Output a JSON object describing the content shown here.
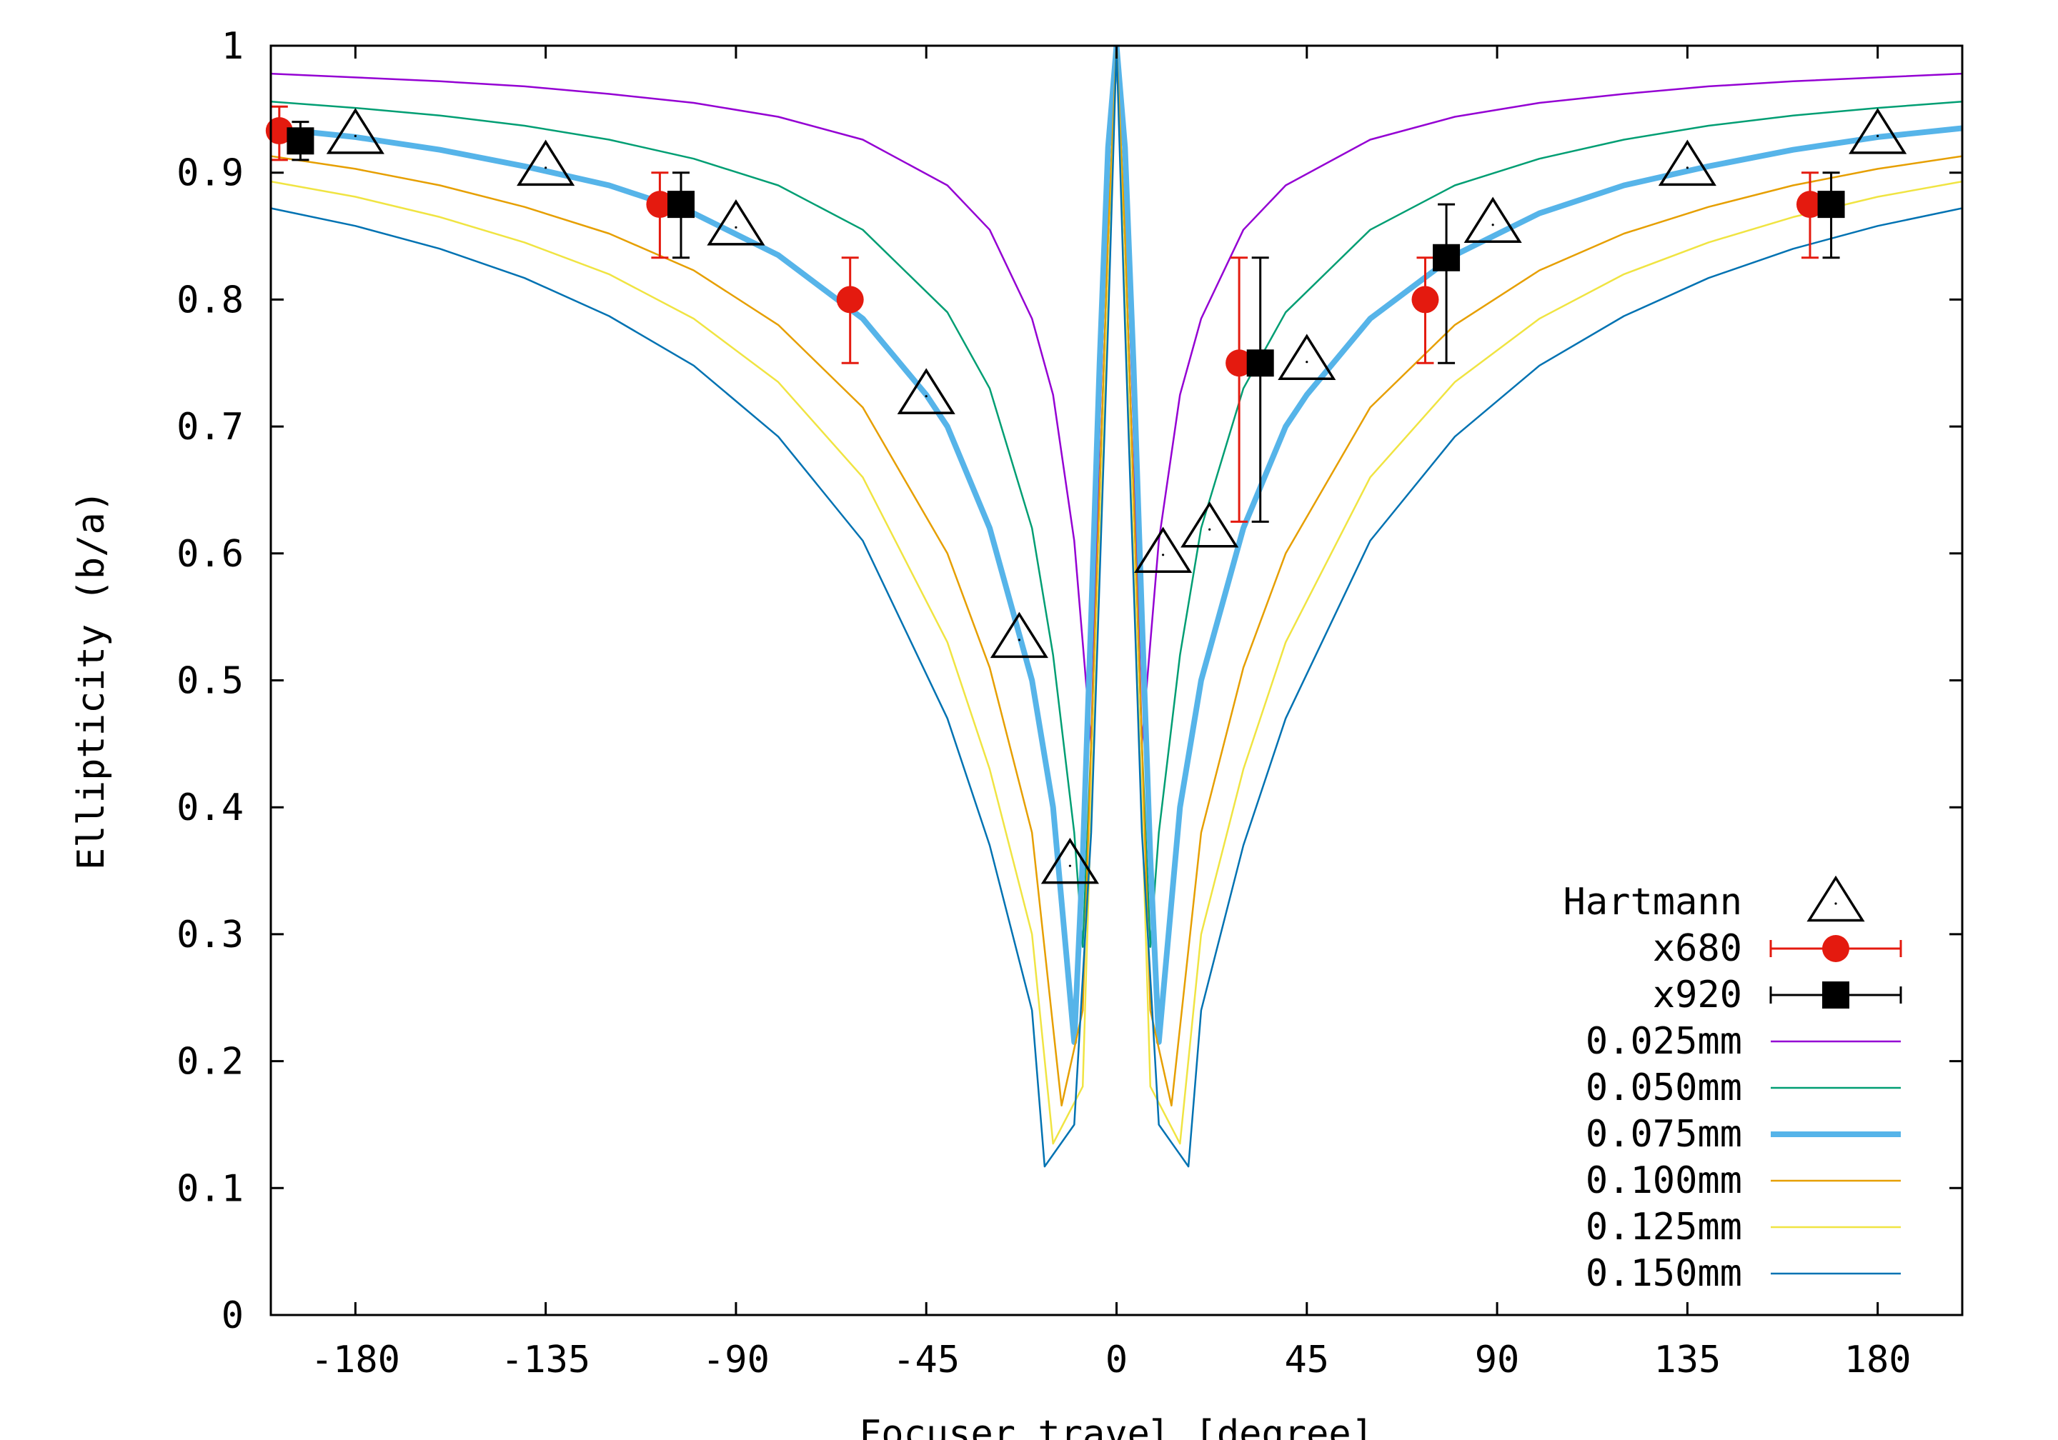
{
  "chart_data": {
    "type": "line",
    "title": "",
    "xlabel": "Focuser travel [degree]",
    "ylabel": "Ellipticity (b/a)",
    "xlim": [
      -200,
      200
    ],
    "ylim": [
      0,
      1
    ],
    "grid": false,
    "x_ticks": [
      -180,
      -135,
      -90,
      -45,
      0,
      45,
      90,
      135,
      180
    ],
    "x_tick_labels": [
      "-180",
      "-135",
      "-90",
      "-45",
      "0",
      "45",
      "90",
      "135",
      "180"
    ],
    "y_ticks": [
      0,
      0.1,
      0.2,
      0.3,
      0.4,
      0.5,
      0.6,
      0.7,
      0.8,
      0.9,
      1
    ],
    "y_tick_labels": [
      "0",
      "0.1",
      "0.2",
      "0.3",
      "0.4",
      "0.5",
      "0.6",
      "0.7",
      "0.8",
      "0.9",
      "1"
    ],
    "legend_position": "bottom-right",
    "legend": [
      {
        "label": "Hartmann",
        "kind": "marker",
        "marker": "triangle",
        "color": "#000000"
      },
      {
        "label": "x680",
        "kind": "errorbar",
        "marker": "circle",
        "color": "#e41a0f"
      },
      {
        "label": "x920",
        "kind": "errorbar",
        "marker": "square",
        "color": "#000000"
      },
      {
        "label": "0.025mm",
        "kind": "line",
        "color": "#9400d3",
        "width": 2.5
      },
      {
        "label": "0.050mm",
        "kind": "line",
        "color": "#009e73",
        "width": 2.5
      },
      {
        "label": "0.075mm",
        "kind": "line",
        "color": "#56b4e9",
        "width": 8
      },
      {
        "label": "0.100mm",
        "kind": "line",
        "color": "#e69f00",
        "width": 2.5
      },
      {
        "label": "0.125mm",
        "kind": "line",
        "color": "#f0e442",
        "width": 2.5
      },
      {
        "label": "0.150mm",
        "kind": "line",
        "color": "#0072b2",
        "width": 2.5
      }
    ],
    "series": [
      {
        "name": "0.025mm",
        "color": "#9400d3",
        "width": 2.5,
        "x": [
          -200,
          -180,
          -160,
          -140,
          -120,
          -100,
          -80,
          -60,
          -40,
          -30,
          -20,
          -15,
          -10,
          -6,
          -4,
          -2,
          0,
          2,
          4,
          6,
          10,
          15,
          20,
          30,
          40,
          60,
          80,
          100,
          120,
          140,
          160,
          180,
          200
        ],
        "y": [
          0.978,
          0.975,
          0.972,
          0.968,
          0.962,
          0.955,
          0.944,
          0.926,
          0.89,
          0.855,
          0.785,
          0.725,
          0.61,
          0.45,
          0.7,
          0.9,
          1.0,
          0.9,
          0.7,
          0.45,
          0.61,
          0.725,
          0.785,
          0.855,
          0.89,
          0.926,
          0.944,
          0.955,
          0.962,
          0.968,
          0.972,
          0.975,
          0.978
        ]
      },
      {
        "name": "0.050mm",
        "color": "#009e73",
        "width": 2.5,
        "x": [
          -200,
          -180,
          -160,
          -140,
          -120,
          -100,
          -80,
          -60,
          -40,
          -30,
          -20,
          -15,
          -10,
          -8,
          -6,
          -4,
          -2,
          0,
          2,
          4,
          6,
          8,
          10,
          15,
          20,
          30,
          40,
          60,
          80,
          100,
          120,
          140,
          160,
          180,
          200
        ],
        "y": [
          0.956,
          0.951,
          0.945,
          0.937,
          0.926,
          0.911,
          0.89,
          0.855,
          0.79,
          0.73,
          0.62,
          0.52,
          0.38,
          0.29,
          0.45,
          0.65,
          0.85,
          1.0,
          0.85,
          0.65,
          0.45,
          0.29,
          0.38,
          0.52,
          0.62,
          0.73,
          0.79,
          0.855,
          0.89,
          0.911,
          0.926,
          0.937,
          0.945,
          0.951,
          0.956
        ]
      },
      {
        "name": "0.075mm",
        "color": "#56b4e9",
        "width": 8,
        "x": [
          -200,
          -180,
          -160,
          -140,
          -120,
          -100,
          -80,
          -60,
          -45,
          -40,
          -30,
          -20,
          -15,
          -10,
          -8,
          -6,
          -4,
          -2,
          0,
          2,
          4,
          6,
          8,
          10,
          15,
          20,
          30,
          40,
          45,
          60,
          80,
          100,
          120,
          140,
          160,
          180,
          200
        ],
        "y": [
          0.935,
          0.928,
          0.918,
          0.905,
          0.89,
          0.868,
          0.835,
          0.785,
          0.725,
          0.7,
          0.62,
          0.5,
          0.4,
          0.215,
          0.36,
          0.55,
          0.75,
          0.92,
          1.0,
          0.92,
          0.75,
          0.55,
          0.36,
          0.215,
          0.4,
          0.5,
          0.62,
          0.7,
          0.725,
          0.785,
          0.835,
          0.868,
          0.89,
          0.905,
          0.918,
          0.928,
          0.935
        ]
      },
      {
        "name": "0.100mm",
        "color": "#e69f00",
        "width": 2.5,
        "x": [
          -200,
          -180,
          -160,
          -140,
          -120,
          -100,
          -80,
          -60,
          -40,
          -30,
          -20,
          -13,
          -8,
          -6,
          -4,
          -2,
          0,
          2,
          4,
          6,
          8,
          13,
          20,
          30,
          40,
          60,
          80,
          100,
          120,
          140,
          160,
          180,
          200
        ],
        "y": [
          0.913,
          0.903,
          0.89,
          0.873,
          0.852,
          0.823,
          0.78,
          0.715,
          0.6,
          0.51,
          0.38,
          0.165,
          0.24,
          0.45,
          0.65,
          0.85,
          1.0,
          0.85,
          0.65,
          0.45,
          0.24,
          0.165,
          0.38,
          0.51,
          0.6,
          0.715,
          0.78,
          0.823,
          0.852,
          0.873,
          0.89,
          0.903,
          0.913
        ]
      },
      {
        "name": "0.125mm",
        "color": "#f0e442",
        "width": 2.5,
        "x": [
          -200,
          -180,
          -160,
          -140,
          -120,
          -100,
          -80,
          -60,
          -40,
          -30,
          -20,
          -15,
          -8,
          -6,
          -4,
          -2,
          0,
          2,
          4,
          6,
          8,
          15,
          20,
          30,
          40,
          60,
          80,
          100,
          120,
          140,
          160,
          180,
          200
        ],
        "y": [
          0.893,
          0.881,
          0.865,
          0.845,
          0.82,
          0.785,
          0.735,
          0.66,
          0.53,
          0.43,
          0.3,
          0.135,
          0.18,
          0.4,
          0.6,
          0.8,
          1.0,
          0.8,
          0.6,
          0.4,
          0.18,
          0.135,
          0.3,
          0.43,
          0.53,
          0.66,
          0.735,
          0.785,
          0.82,
          0.845,
          0.865,
          0.881,
          0.893
        ]
      },
      {
        "name": "0.150mm",
        "color": "#0072b2",
        "width": 2.5,
        "x": [
          -200,
          -180,
          -160,
          -140,
          -120,
          -100,
          -80,
          -60,
          -40,
          -30,
          -20,
          -17,
          -10,
          -6,
          -4,
          -2,
          0,
          2,
          4,
          6,
          10,
          17,
          20,
          30,
          40,
          60,
          80,
          100,
          120,
          140,
          160,
          180,
          200
        ],
        "y": [
          0.872,
          0.858,
          0.84,
          0.817,
          0.787,
          0.748,
          0.692,
          0.61,
          0.47,
          0.37,
          0.24,
          0.117,
          0.15,
          0.38,
          0.58,
          0.78,
          1.0,
          0.78,
          0.58,
          0.38,
          0.15,
          0.117,
          0.24,
          0.37,
          0.47,
          0.61,
          0.692,
          0.748,
          0.787,
          0.817,
          0.84,
          0.858,
          0.872
        ]
      },
      {
        "name": "Hartmann",
        "color": "#000000",
        "marker": "triangle",
        "x": [
          -180,
          -135,
          -90,
          -45,
          -23,
          -11,
          11,
          22,
          45,
          89,
          135,
          180
        ],
        "y": [
          0.93,
          0.905,
          0.858,
          0.725,
          0.533,
          0.355,
          0.6,
          0.62,
          0.752,
          0.86,
          0.905,
          0.93
        ]
      },
      {
        "name": "x680",
        "color": "#e41a0f",
        "marker": "circle",
        "x": [
          -198,
          -108,
          -63,
          29,
          73,
          164
        ],
        "y": [
          0.933,
          0.875,
          0.8,
          0.75,
          0.8,
          0.875
        ],
        "err_low": [
          0.91,
          0.833,
          0.75,
          0.625,
          0.75,
          0.833
        ],
        "err_high": [
          0.952,
          0.9,
          0.833,
          0.833,
          0.833,
          0.9
        ]
      },
      {
        "name": "x920",
        "color": "#000000",
        "marker": "square",
        "x": [
          -193,
          -103,
          34,
          78,
          169
        ],
        "y": [
          0.925,
          0.875,
          0.75,
          0.833,
          0.875
        ],
        "err_low": [
          0.91,
          0.833,
          0.625,
          0.75,
          0.833
        ],
        "err_high": [
          0.94,
          0.9,
          0.833,
          0.875,
          0.9
        ]
      }
    ]
  }
}
